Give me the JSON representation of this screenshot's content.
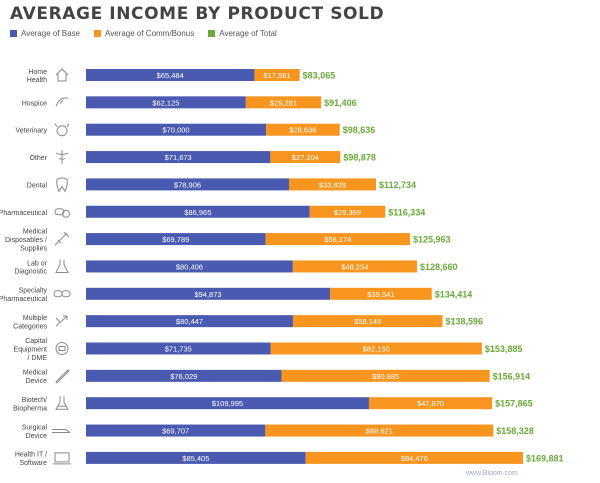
{
  "chart_data": {
    "type": "bar",
    "stacked": true,
    "title": "AVERAGE INCOME BY PRODUCT SOLD",
    "xlabel": "",
    "ylabel": "",
    "categories": [
      "Home Health",
      "Hospice",
      "Veterinary",
      "Other",
      "Dental",
      "Pharmaceutical",
      "Medical Disposables / Supplies",
      "Lab or Diagnostic",
      "Specialty Pharmaceutical",
      "Multiple Categories",
      "Capital Equipment / DME",
      "Medical Device",
      "Biotech/ Biopherma",
      "Surgical Device",
      "Health IT / Software"
    ],
    "category_lines": [
      [
        "Home",
        "Health"
      ],
      [
        "Hospice"
      ],
      [
        "Veterinary"
      ],
      [
        "Other"
      ],
      [
        "Dental"
      ],
      [
        "Pharmaceutical"
      ],
      [
        "Medical",
        "Disposables /",
        "Supplies"
      ],
      [
        "Lab or",
        "Diagnostic"
      ],
      [
        "Specialty",
        "Pharmaceutical"
      ],
      [
        "Multiple",
        "Categories"
      ],
      [
        "Capital",
        "Equipment",
        "/ DME"
      ],
      [
        "Medical",
        "Device"
      ],
      [
        "Biotech/",
        "Biopherma"
      ],
      [
        "Surgical",
        "Device"
      ],
      [
        "Health IT /",
        "Software"
      ]
    ],
    "icons": [
      "house-icon",
      "hand-heart-icon",
      "animal-icon",
      "caduceus-icon",
      "tooth-icon",
      "pills-icon",
      "syringe-icon",
      "flask-icon",
      "capsules-icon",
      "arrows-icon",
      "monitor-icon",
      "scalpel-icon",
      "dna-icon",
      "surgical-tool-icon",
      "laptop-icon"
    ],
    "series": [
      {
        "name": "Average of Base",
        "color": "#4a5ab0",
        "values": [
          65484,
          62125,
          70000,
          71673,
          78906,
          86965,
          69789,
          80406,
          94873,
          80447,
          71735,
          76029,
          109995,
          69707,
          85405
        ],
        "labels": [
          "$65,484",
          "$62,125",
          "$70,000",
          "$71,673",
          "$78,906",
          "$86,965",
          "$69,789",
          "$80,406",
          "$94,873",
          "$80,447",
          "$71,735",
          "$76,029",
          "$109,995",
          "$69,707",
          "$85,405"
        ]
      },
      {
        "name": "Average of Comm/Bonus",
        "color": "#f7951e",
        "values": [
          17581,
          29281,
          28636,
          27204,
          33828,
          29369,
          56174,
          48254,
          39541,
          58149,
          82150,
          80885,
          47870,
          88621,
          84476
        ],
        "labels": [
          "$17,581",
          "$29,281",
          "$28,636",
          "$27,204",
          "$33,828",
          "$29,369",
          "$56,174",
          "$48,254",
          "$39,541",
          "$58,149",
          "$82,150",
          "$80,885",
          "$47,870",
          "$88,621",
          "$84,476"
        ]
      }
    ],
    "totals": {
      "name": "Average of Total",
      "color": "#6aaa3a",
      "values": [
        83065,
        91406,
        98636,
        98878,
        112734,
        116334,
        125963,
        128660,
        134414,
        138596,
        153885,
        156914,
        157865,
        158328,
        169881
      ],
      "labels": [
        "$83,065",
        "$91,406",
        "$98,636",
        "$98,878",
        "$112,734",
        "$116,334",
        "$125,963",
        "$128,660",
        "$134,414",
        "$138,596",
        "$153,885",
        "$156,914",
        "$157,865",
        "$158,328",
        "$169,881"
      ]
    },
    "legend_position": "top-left",
    "grid": false
  },
  "watermark": "www.Bloom.com"
}
